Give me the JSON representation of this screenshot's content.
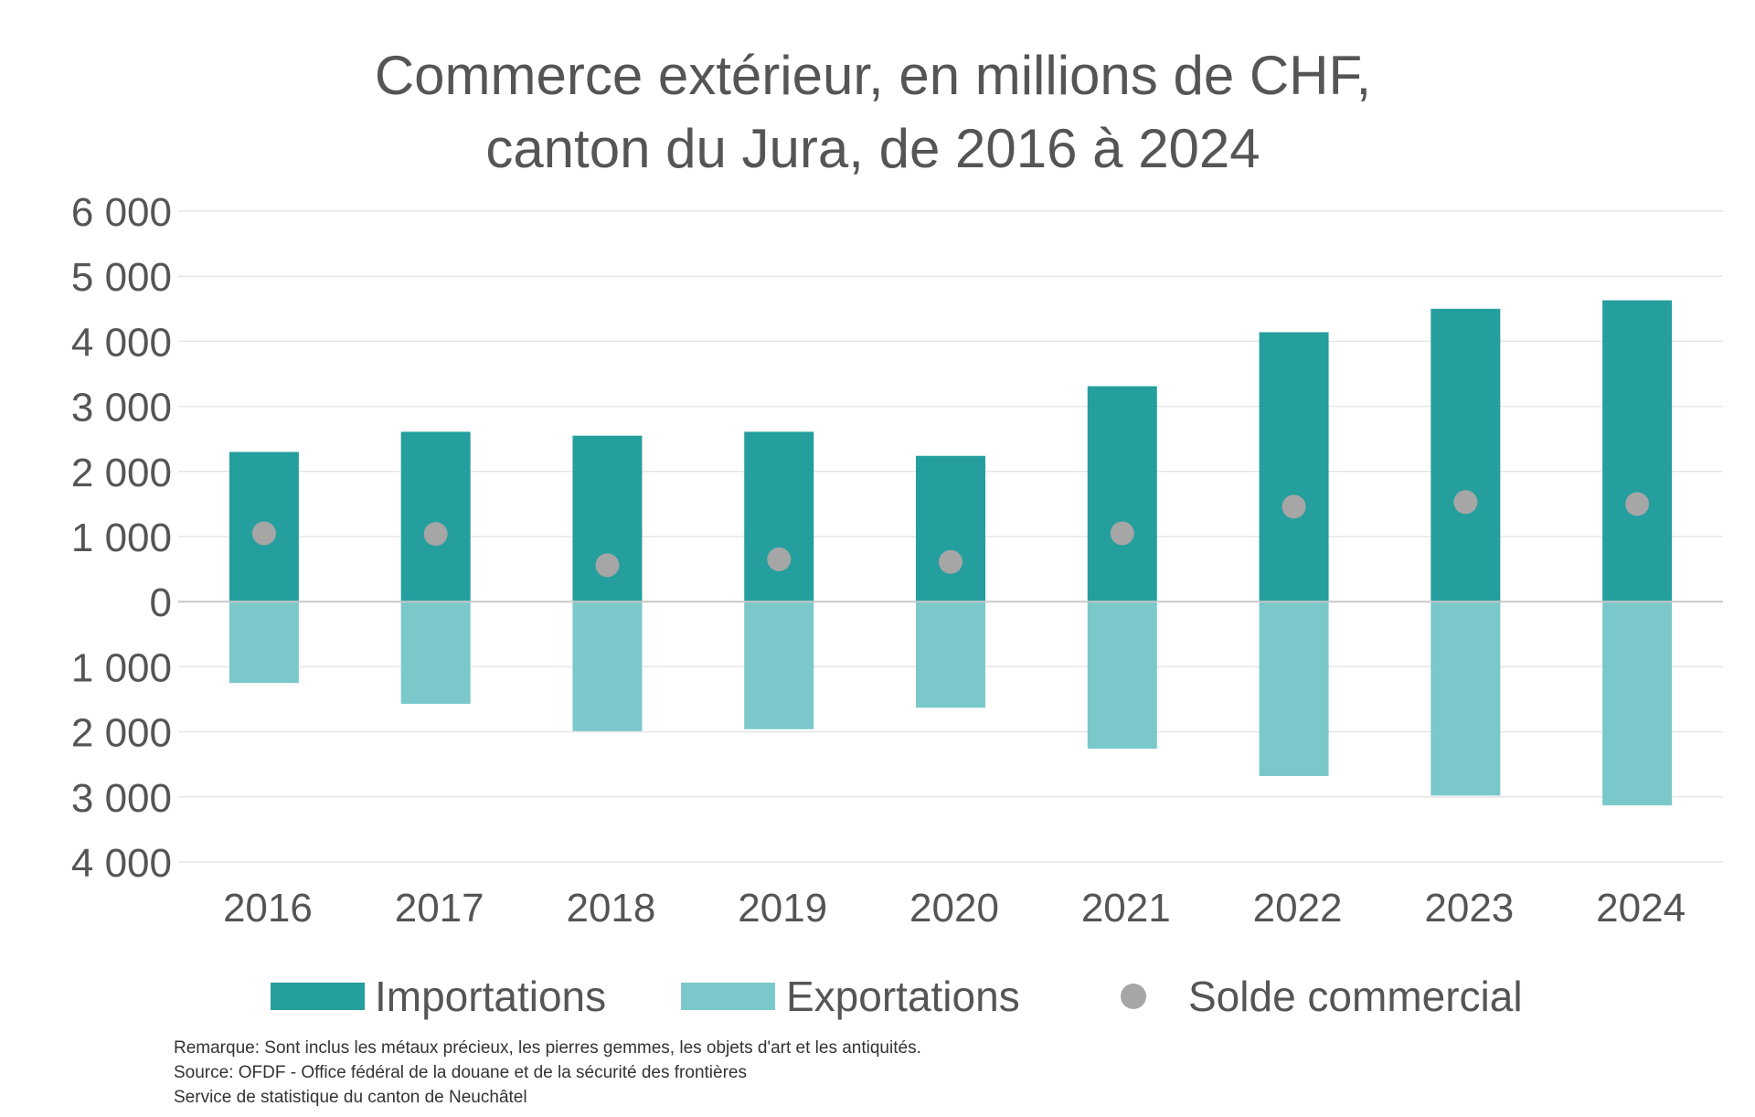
{
  "chart_data": {
    "type": "bar",
    "title": [
      "Commerce extérieur, en millions de CHF,",
      "canton du Jura, de 2016 à 2024"
    ],
    "categories": [
      "2016",
      "2017",
      "2018",
      "2019",
      "2020",
      "2021",
      "2022",
      "2023",
      "2024"
    ],
    "series": [
      {
        "name": "Importations",
        "kind": "bar",
        "color": "#259e9e",
        "values": [
          2300,
          2610,
          2550,
          2610,
          2240,
          3310,
          4140,
          4500,
          4630
        ]
      },
      {
        "name": "Exportations",
        "kind": "bar",
        "color": "#7bc8cb",
        "values": [
          -1250,
          -1570,
          -1990,
          -1960,
          -1630,
          -2260,
          -2680,
          -2980,
          -3130
        ]
      },
      {
        "name": "Solde commercial",
        "kind": "scatter",
        "color": "#a6a6a6",
        "values": [
          1050,
          1040,
          560,
          650,
          610,
          1050,
          1460,
          1530,
          1500
        ]
      }
    ],
    "ylim": [
      -4000,
      6000
    ],
    "yticks": [
      6000,
      5000,
      4000,
      3000,
      2000,
      1000,
      0,
      -1000,
      -2000,
      -3000,
      -4000
    ],
    "ytick_labels": [
      "6 000",
      "5 000",
      "4 000",
      "3 000",
      "2 000",
      "1 000",
      "0",
      "1 000",
      "2 000",
      "3 000",
      "4 000"
    ],
    "grid": true,
    "legend_position": "bottom"
  },
  "notes": {
    "remark": "Remarque: Sont inclus les métaux précieux, les pierres gemmes, les objets d'art et les antiquités.",
    "source": "Source: OFDF - Office fédéral de la douane et de la sécurité des frontières",
    "producer": "Service de statistique du canton de Neuchâtel"
  }
}
